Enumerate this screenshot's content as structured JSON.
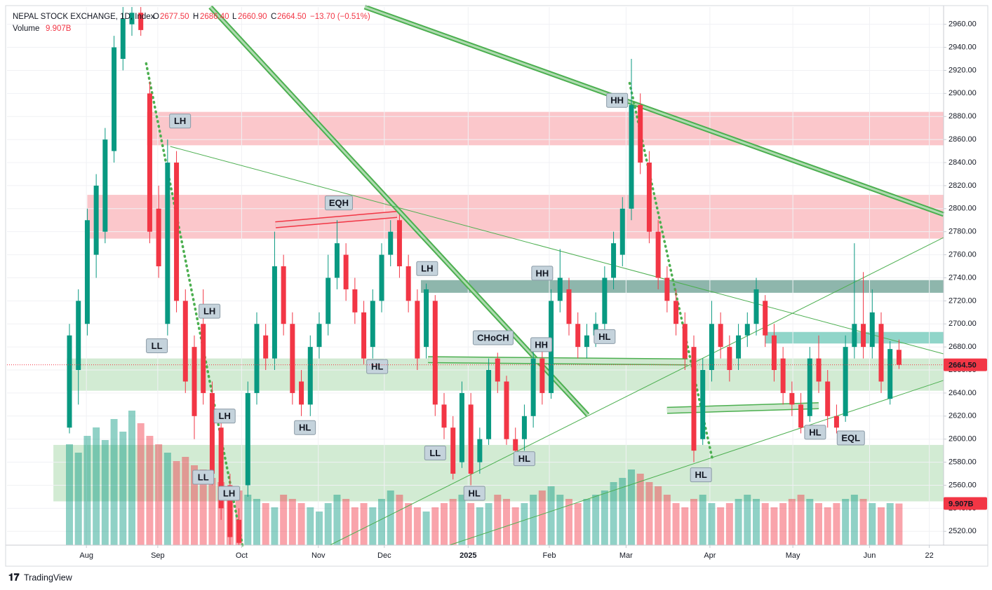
{
  "header": {
    "title": "NEPAL STOCK EXCHANGE, 1D, Index",
    "o_label": "O",
    "o": "2677.50",
    "h_label": "H",
    "h": "2686.40",
    "l_label": "L",
    "l": "2660.90",
    "c_label": "C",
    "c": "2664.50",
    "change": "−13.70 (−0.51%)",
    "volume_label": "Volume",
    "volume": "9.907B"
  },
  "footer": {
    "brand": "TradingView"
  },
  "chart_data": {
    "type": "candlestick",
    "up_color": "#089981",
    "down_color": "#f23645",
    "xlim": [
      -7,
      98
    ],
    "ylim": [
      2508,
      2975
    ],
    "grid": true,
    "xticks": [
      {
        "value": 1.9,
        "label": "Aug"
      },
      {
        "value": 9.9,
        "label": "Sep"
      },
      {
        "value": 19.3,
        "label": "Oct"
      },
      {
        "value": 27.9,
        "label": "Nov"
      },
      {
        "value": 35.3,
        "label": "Dec"
      },
      {
        "value": 44.7,
        "label": "2025"
      },
      {
        "value": 53.8,
        "label": "Feb"
      },
      {
        "value": 62.4,
        "label": "Mar"
      },
      {
        "value": 71.8,
        "label": "Apr"
      },
      {
        "value": 81.1,
        "label": "May"
      },
      {
        "value": 89.7,
        "label": "Jun"
      },
      {
        "value": 96.4,
        "label": "22"
      }
    ],
    "yticks": [
      {
        "value": 2520,
        "label": "2520.00"
      },
      {
        "value": 2540,
        "label": "2540.00"
      },
      {
        "value": 2560,
        "label": "2560.00"
      },
      {
        "value": 2580,
        "label": "2580.00"
      },
      {
        "value": 2600,
        "label": "2600.00"
      },
      {
        "value": 2620,
        "label": "2620.00"
      },
      {
        "value": 2640,
        "label": "2640.00"
      },
      {
        "value": 2660,
        "label": "2660.00"
      },
      {
        "value": 2680,
        "label": "2680.00"
      },
      {
        "value": 2700,
        "label": "2700.00"
      },
      {
        "value": 2720,
        "label": "2720.00"
      },
      {
        "value": 2740,
        "label": "2740.00"
      },
      {
        "value": 2760,
        "label": "2760.00"
      },
      {
        "value": 2780,
        "label": "2780.00"
      },
      {
        "value": 2800,
        "label": "2800.00"
      },
      {
        "value": 2820,
        "label": "2820.00"
      },
      {
        "value": 2840,
        "label": "2840.00"
      },
      {
        "value": 2860,
        "label": "2860.00"
      },
      {
        "value": 2880,
        "label": "2880.00"
      },
      {
        "value": 2900,
        "label": "2900.00"
      },
      {
        "value": 2920,
        "label": "2920.00"
      },
      {
        "value": 2940,
        "label": "2940.00"
      },
      {
        "value": 2960,
        "label": "2960.00"
      }
    ],
    "ohlc": [
      [
        2610,
        2700,
        2605,
        2690
      ],
      [
        2660,
        2730,
        2630,
        2720
      ],
      [
        2700,
        2800,
        2690,
        2790
      ],
      [
        2760,
        2830,
        2740,
        2820
      ],
      [
        2780,
        2870,
        2770,
        2860
      ],
      [
        2850,
        2950,
        2840,
        2940
      ],
      [
        2930,
        2975,
        2920,
        2965
      ],
      [
        2960,
        2975,
        2950,
        2970
      ],
      [
        2970,
        2975,
        2950,
        2955
      ],
      [
        2900,
        2910,
        2770,
        2780
      ],
      [
        2800,
        2820,
        2740,
        2750
      ],
      [
        2700,
        2860,
        2690,
        2840
      ],
      [
        2840,
        2850,
        2710,
        2720
      ],
      [
        2720,
        2730,
        2640,
        2650
      ],
      [
        2680,
        2690,
        2600,
        2620
      ],
      [
        2700,
        2730,
        2630,
        2640
      ],
      [
        2640,
        2650,
        2560,
        2570
      ],
      [
        2610,
        2620,
        2530,
        2540
      ],
      [
        2560,
        2570,
        2508,
        2515
      ],
      [
        2530,
        2540,
        2508,
        2510
      ],
      [
        2560,
        2650,
        2550,
        2640
      ],
      [
        2640,
        2710,
        2630,
        2700
      ],
      [
        2690,
        2700,
        2660,
        2670
      ],
      [
        2670,
        2780,
        2660,
        2750
      ],
      [
        2750,
        2760,
        2690,
        2700
      ],
      [
        2700,
        2710,
        2630,
        2640
      ],
      [
        2650,
        2660,
        2620,
        2630
      ],
      [
        2630,
        2690,
        2620,
        2680
      ],
      [
        2680,
        2710,
        2670,
        2700
      ],
      [
        2700,
        2760,
        2690,
        2740
      ],
      [
        2740,
        2790,
        2730,
        2770
      ],
      [
        2760,
        2770,
        2720,
        2730
      ],
      [
        2730,
        2740,
        2700,
        2710
      ],
      [
        2710,
        2720,
        2665,
        2670
      ],
      [
        2680,
        2730,
        2670,
        2720
      ],
      [
        2720,
        2770,
        2710,
        2760
      ],
      [
        2760,
        2790,
        2750,
        2780
      ],
      [
        2790,
        2795,
        2740,
        2750
      ],
      [
        2750,
        2760,
        2710,
        2720
      ],
      [
        2720,
        2730,
        2660,
        2670
      ],
      [
        2680,
        2735,
        2670,
        2730
      ],
      [
        2720,
        2725,
        2620,
        2630
      ],
      [
        2630,
        2640,
        2600,
        2610
      ],
      [
        2610,
        2620,
        2565,
        2570
      ],
      [
        2580,
        2650,
        2575,
        2640
      ],
      [
        2630,
        2640,
        2560,
        2570
      ],
      [
        2580,
        2610,
        2570,
        2600
      ],
      [
        2600,
        2670,
        2595,
        2660
      ],
      [
        2670,
        2675,
        2640,
        2650
      ],
      [
        2650,
        2655,
        2595,
        2600
      ],
      [
        2600,
        2610,
        2580,
        2590
      ],
      [
        2600,
        2630,
        2590,
        2620
      ],
      [
        2620,
        2680,
        2610,
        2670
      ],
      [
        2670,
        2680,
        2630,
        2640
      ],
      [
        2640,
        2730,
        2635,
        2720
      ],
      [
        2720,
        2765,
        2710,
        2740
      ],
      [
        2730,
        2740,
        2690,
        2700
      ],
      [
        2700,
        2710,
        2670,
        2680
      ],
      [
        2680,
        2700,
        2670,
        2690
      ],
      [
        2690,
        2710,
        2680,
        2700
      ],
      [
        2700,
        2750,
        2690,
        2740
      ],
      [
        2740,
        2780,
        2730,
        2770
      ],
      [
        2760,
        2810,
        2750,
        2800
      ],
      [
        2800,
        2930,
        2790,
        2890
      ],
      [
        2890,
        2900,
        2830,
        2840
      ],
      [
        2840,
        2850,
        2770,
        2780
      ],
      [
        2780,
        2790,
        2730,
        2740
      ],
      [
        2740,
        2750,
        2710,
        2720
      ],
      [
        2720,
        2730,
        2690,
        2700
      ],
      [
        2700,
        2710,
        2660,
        2670
      ],
      [
        2680,
        2690,
        2580,
        2590
      ],
      [
        2600,
        2670,
        2595,
        2660
      ],
      [
        2660,
        2720,
        2650,
        2700
      ],
      [
        2700,
        2710,
        2670,
        2680
      ],
      [
        2680,
        2690,
        2650,
        2660
      ],
      [
        2670,
        2700,
        2660,
        2690
      ],
      [
        2690,
        2710,
        2680,
        2700
      ],
      [
        2700,
        2740,
        2690,
        2730
      ],
      [
        2720,
        2725,
        2680,
        2690
      ],
      [
        2690,
        2700,
        2650,
        2660
      ],
      [
        2670,
        2680,
        2630,
        2640
      ],
      [
        2640,
        2650,
        2620,
        2630
      ],
      [
        2630,
        2640,
        2605,
        2610
      ],
      [
        2620,
        2680,
        2615,
        2670
      ],
      [
        2670,
        2690,
        2640,
        2650
      ],
      [
        2650,
        2660,
        2610,
        2620
      ],
      [
        2620,
        2630,
        2605,
        2610
      ],
      [
        2620,
        2690,
        2615,
        2680
      ],
      [
        2680,
        2770,
        2670,
        2700
      ],
      [
        2700,
        2745,
        2670,
        2680
      ],
      [
        2680,
        2730,
        2670,
        2710
      ],
      [
        2700,
        2710,
        2640,
        2650
      ],
      [
        2635,
        2685,
        2630,
        2678.2
      ],
      [
        2677.5,
        2686.4,
        2660.9,
        2664.5
      ]
    ],
    "volume": [
      24,
      22,
      26,
      28,
      25,
      30,
      27,
      32,
      29,
      26,
      24,
      22,
      20,
      21,
      19,
      18,
      16,
      15,
      14,
      13,
      12,
      11,
      10,
      9,
      12,
      11,
      10,
      9,
      8,
      10,
      12,
      11,
      9,
      10,
      9,
      11,
      13,
      12,
      10,
      9,
      8,
      9,
      10,
      11,
      12,
      10,
      9,
      10,
      12,
      11,
      9,
      10,
      12,
      13,
      14,
      12,
      11,
      10,
      11,
      12,
      13,
      15,
      16,
      18,
      17,
      15,
      14,
      12,
      10,
      9,
      11,
      12,
      10,
      9,
      10,
      11,
      12,
      11,
      10,
      9,
      10,
      11,
      12,
      11,
      10,
      9,
      10,
      11,
      12,
      11,
      10,
      9,
      10,
      9.907
    ],
    "volume_ylim": [
      0,
      40
    ],
    "volume_axis_label": {
      "value": 9.907,
      "label": "9.907B"
    },
    "price_label": {
      "value": 2664.5,
      "label": "2664.50"
    },
    "zones": [
      {
        "y": [
          2855,
          2884
        ],
        "x": [
          8.7,
          98
        ],
        "color": "rgba(242,54,69,0.28)"
      },
      {
        "y": [
          2774,
          2812
        ],
        "x": [
          2.0,
          98
        ],
        "color": "rgba(242,54,69,0.28)"
      },
      {
        "y": [
          2727,
          2738
        ],
        "x": [
          39.4,
          98
        ],
        "color": "rgba(30,110,90,0.5)"
      },
      {
        "y": [
          2683,
          2693
        ],
        "x": [
          78,
          98
        ],
        "color": "rgba(34,171,148,0.5)"
      },
      {
        "y": [
          2642,
          2670
        ],
        "x": [
          -0.3,
          98
        ],
        "color": "rgba(76,175,80,0.25)"
      },
      {
        "y": [
          2546,
          2595
        ],
        "x": [
          -1.8,
          98
        ],
        "color": "rgba(76,175,80,0.25)"
      }
    ],
    "lines": [
      {
        "style": "double",
        "color": "#4caf50",
        "points": [
          15.8,
          2975,
          58.1,
          2621
        ]
      },
      {
        "style": "double",
        "color": "#4caf50",
        "points": [
          33.1,
          2975,
          98,
          2795
        ]
      },
      {
        "style": "thin",
        "color": "#4caf50",
        "points": [
          11.3,
          2854,
          98,
          2674
        ]
      },
      {
        "style": "thin",
        "color": "#4caf50",
        "points": [
          29.2,
          2508,
          98,
          2775
        ]
      },
      {
        "style": "thin",
        "color": "#4caf50",
        "points": [
          42.6,
          2508,
          98,
          2651
        ]
      },
      {
        "style": "dotted",
        "color": "#4caf50",
        "points": [
          8.6,
          2926,
          19.4,
          2508
        ]
      },
      {
        "style": "dotted",
        "color": "#4caf50",
        "points": [
          62.8,
          2909,
          72.1,
          2582
        ]
      },
      {
        "style": "channel",
        "color": "#f23645",
        "points": [
          23.1,
          2786,
          36.7,
          2795
        ]
      },
      {
        "style": "channel",
        "color": "#4caf50",
        "points": [
          40.2,
          2669,
          69.3,
          2667
        ]
      },
      {
        "style": "channel",
        "color": "#4caf50",
        "points": [
          67.0,
          2625,
          84.0,
          2629
        ]
      }
    ],
    "annotations": [
      {
        "text": "LH",
        "x": 12.4,
        "y": 2876,
        "color": "#f23645"
      },
      {
        "text": "LL",
        "x": 9.8,
        "y": 2681,
        "color": "#f23645"
      },
      {
        "text": "LH",
        "x": 15.7,
        "y": 2711,
        "color": "#f23645"
      },
      {
        "text": "LH",
        "x": 17.4,
        "y": 2620,
        "color": "#f23645"
      },
      {
        "text": "LL",
        "x": 15.0,
        "y": 2567,
        "color": "#f23645"
      },
      {
        "text": "LH",
        "x": 17.9,
        "y": 2553,
        "color": "#f23645"
      },
      {
        "text": "EQH",
        "x": 30.2,
        "y": 2805,
        "color": "#f23645"
      },
      {
        "text": "LH",
        "x": 40.1,
        "y": 2748,
        "color": "#f23645"
      },
      {
        "text": "HL",
        "x": 34.5,
        "y": 2663,
        "color": "#0d8a80"
      },
      {
        "text": "HL",
        "x": 26.4,
        "y": 2610,
        "color": "#0d8a80"
      },
      {
        "text": "CHoCH",
        "x": 47.5,
        "y": 2688,
        "color": "#0d8a80"
      },
      {
        "text": "LL",
        "x": 41.0,
        "y": 2588,
        "color": "#f23645"
      },
      {
        "text": "HL",
        "x": 45.4,
        "y": 2553,
        "color": "#0d8a80"
      },
      {
        "text": "HL",
        "x": 51.0,
        "y": 2583,
        "color": "#0d8a80"
      },
      {
        "text": "HH",
        "x": 53.0,
        "y": 2744,
        "color": "#0d8a80"
      },
      {
        "text": "HH",
        "x": 52.9,
        "y": 2682,
        "color": "#0d8a80"
      },
      {
        "text": "HL",
        "x": 60.0,
        "y": 2689,
        "color": "#0d8a80"
      },
      {
        "text": "HH",
        "x": 61.4,
        "y": 2894,
        "color": "#0d8a80"
      },
      {
        "text": "HL",
        "x": 70.8,
        "y": 2569,
        "color": "#0d8a80"
      },
      {
        "text": "HL",
        "x": 83.6,
        "y": 2606,
        "color": "#0d8a80"
      },
      {
        "text": "EQL",
        "x": 87.6,
        "y": 2601,
        "color": "#0d8a80"
      }
    ]
  }
}
